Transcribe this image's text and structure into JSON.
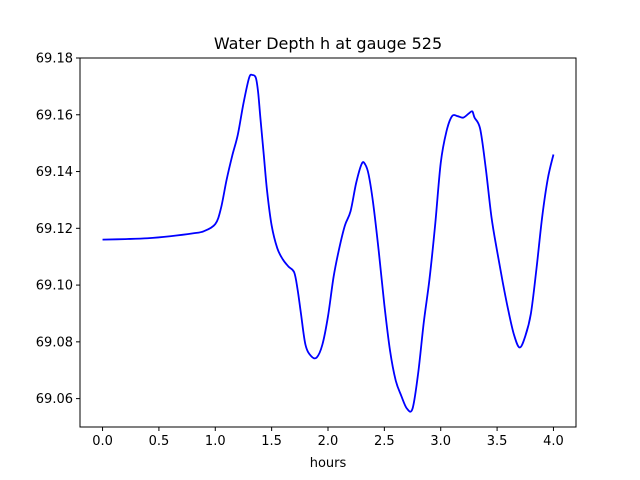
{
  "chart_data": {
    "type": "line",
    "title": "Water Depth h at gauge 525",
    "xlabel": "hours",
    "ylabel": "",
    "xlim": [
      -0.2,
      4.2
    ],
    "ylim": [
      69.05,
      69.18
    ],
    "xticks": [
      0.0,
      0.5,
      1.0,
      1.5,
      2.0,
      2.5,
      3.0,
      3.5,
      4.0
    ],
    "xtick_labels": [
      "0.0",
      "0.5",
      "1.0",
      "1.5",
      "2.0",
      "2.5",
      "3.0",
      "3.5",
      "4.0"
    ],
    "yticks": [
      69.06,
      69.08,
      69.1,
      69.12,
      69.14,
      69.16,
      69.18
    ],
    "ytick_labels": [
      "69.06",
      "69.08",
      "69.10",
      "69.12",
      "69.14",
      "69.16",
      "69.18"
    ],
    "grid": false,
    "series": [
      {
        "color": "#0000ff",
        "x": [
          0.0,
          0.2,
          0.4,
          0.6,
          0.8,
          0.9,
          1.0,
          1.05,
          1.1,
          1.15,
          1.2,
          1.25,
          1.3,
          1.33,
          1.36,
          1.38,
          1.4,
          1.43,
          1.46,
          1.5,
          1.55,
          1.6,
          1.65,
          1.7,
          1.73,
          1.76,
          1.8,
          1.85,
          1.9,
          1.95,
          2.0,
          2.05,
          2.1,
          2.15,
          2.2,
          2.25,
          2.3,
          2.33,
          2.36,
          2.4,
          2.45,
          2.5,
          2.55,
          2.6,
          2.65,
          2.7,
          2.75,
          2.8,
          2.85,
          2.9,
          2.95,
          3.0,
          3.05,
          3.1,
          3.15,
          3.2,
          3.25,
          3.28,
          3.3,
          3.35,
          3.4,
          3.45,
          3.5,
          3.55,
          3.6,
          3.65,
          3.7,
          3.75,
          3.8,
          3.85,
          3.9,
          3.95,
          4.0
        ],
        "y": [
          69.116,
          69.1162,
          69.1165,
          69.1172,
          69.1182,
          69.119,
          69.1215,
          69.127,
          69.137,
          69.1455,
          69.153,
          69.164,
          69.173,
          69.174,
          69.173,
          69.168,
          69.159,
          69.146,
          69.133,
          69.121,
          69.113,
          69.109,
          69.1065,
          69.1045,
          69.0985,
          69.09,
          69.079,
          69.075,
          69.0745,
          69.079,
          69.089,
          69.103,
          69.113,
          69.121,
          69.126,
          69.136,
          69.1428,
          69.1425,
          69.139,
          69.129,
          69.112,
          69.093,
          69.077,
          69.0665,
          69.061,
          69.0565,
          69.0565,
          69.069,
          69.087,
          69.102,
          69.121,
          69.143,
          69.154,
          69.1595,
          69.1595,
          69.159,
          69.1605,
          69.1612,
          69.159,
          69.155,
          69.141,
          69.124,
          69.112,
          69.101,
          69.091,
          69.0825,
          69.078,
          69.082,
          69.09,
          69.106,
          69.124,
          69.1375,
          69.146
        ]
      }
    ]
  }
}
